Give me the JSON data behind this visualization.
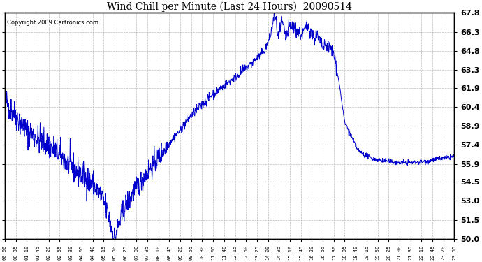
{
  "title": "Wind Chill per Minute (Last 24 Hours)  20090514",
  "copyright_text": "Copyright 2009 Cartronics.com",
  "line_color": "#0000cc",
  "background_color": "#ffffff",
  "grid_color": "#bbbbbb",
  "ylim": [
    50.0,
    67.8
  ],
  "yticks": [
    50.0,
    51.5,
    53.0,
    54.5,
    55.9,
    57.4,
    58.9,
    60.4,
    61.9,
    63.3,
    64.8,
    66.3,
    67.8
  ],
  "xtick_labels": [
    "00:00",
    "00:35",
    "01:10",
    "01:45",
    "02:20",
    "02:55",
    "03:30",
    "04:05",
    "04:40",
    "05:15",
    "05:50",
    "06:25",
    "07:00",
    "07:35",
    "08:10",
    "08:45",
    "09:20",
    "09:55",
    "10:30",
    "11:05",
    "11:40",
    "12:15",
    "12:50",
    "13:25",
    "14:00",
    "14:35",
    "15:10",
    "15:45",
    "16:20",
    "16:55",
    "17:30",
    "18:05",
    "18:40",
    "19:15",
    "19:50",
    "20:25",
    "21:00",
    "21:35",
    "22:10",
    "22:45",
    "23:20",
    "23:55"
  ],
  "num_minutes": 1440,
  "figsize": [
    6.9,
    3.75
  ],
  "dpi": 100
}
